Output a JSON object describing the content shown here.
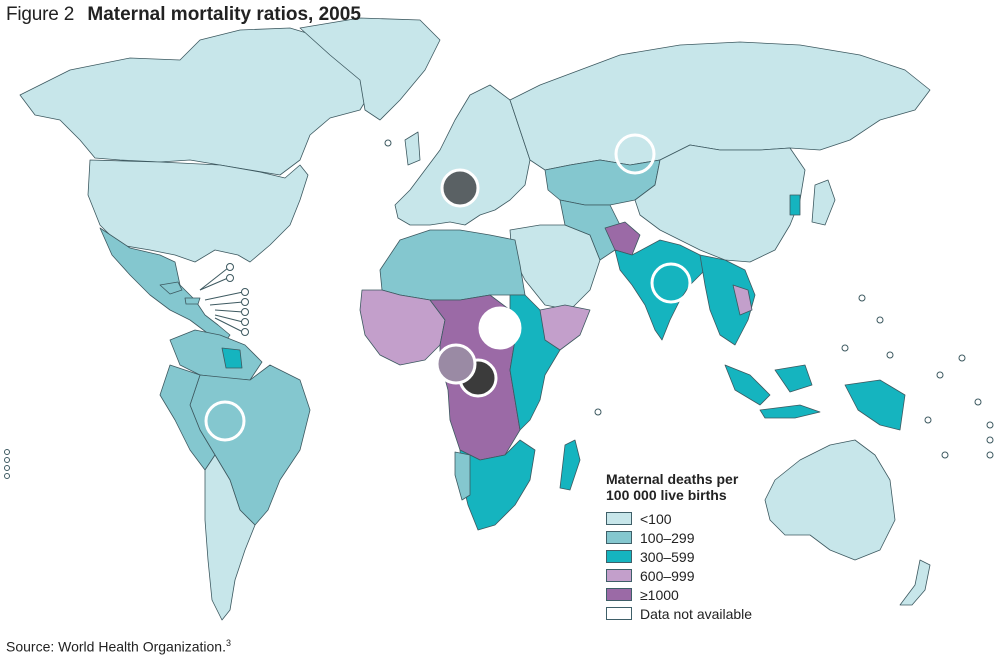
{
  "figure": {
    "label": "Figure 2",
    "title": "Maternal mortality ratios, 2005"
  },
  "legend": {
    "title_line1": "Maternal deaths per",
    "title_line2": "100 000 live births",
    "items": [
      {
        "label": "<100",
        "color": "#c7e6ea"
      },
      {
        "label": "100–299",
        "color": "#84c7cf"
      },
      {
        "label": "300–599",
        "color": "#15b4bf"
      },
      {
        "label": "600–999",
        "color": "#c39fcb"
      },
      {
        "label": "≥1000",
        "color": "#9b6aa6"
      },
      {
        "label": "Data not available",
        "color": "#ffffff"
      }
    ]
  },
  "source": {
    "text": "Source: World Health Organization.",
    "ref": "3"
  }
}
